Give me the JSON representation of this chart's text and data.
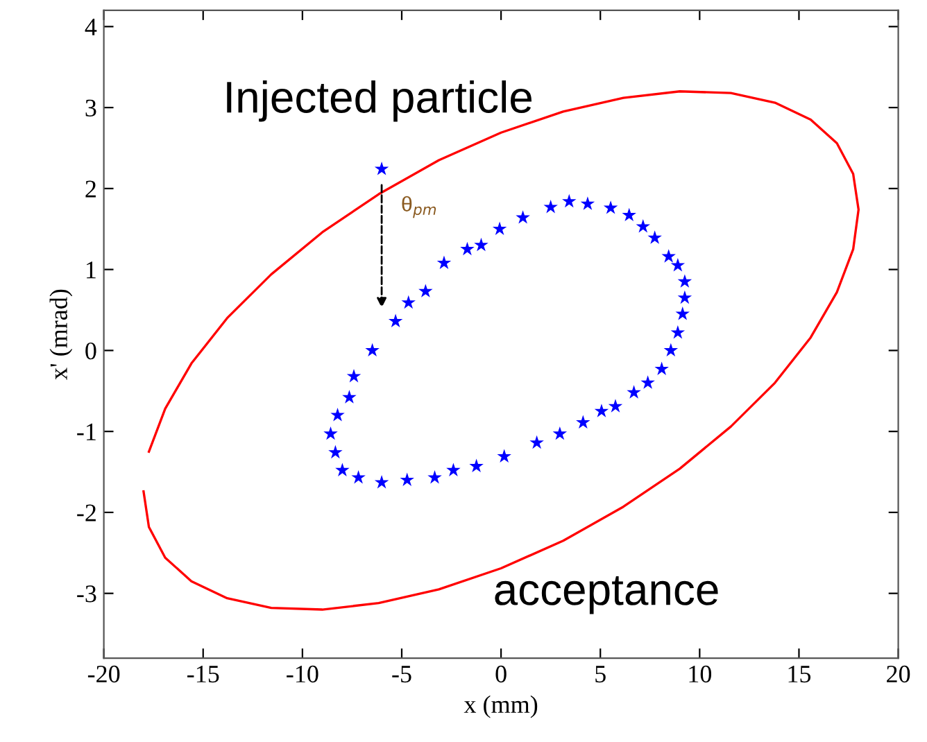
{
  "chart_data": {
    "type": "scatter",
    "xlabel": "x (mm)",
    "ylabel": "x' (mrad)",
    "xlim": [
      -20,
      20
    ],
    "xticks": [
      -20,
      -15,
      -10,
      -5,
      0,
      5,
      10,
      15,
      20
    ],
    "ylim": [
      -3.8,
      4.2
    ],
    "yticks": [
      -3,
      -2,
      -1,
      0,
      1,
      2,
      3,
      4
    ],
    "grid": false,
    "legend": false,
    "annotations": [
      "θ$_{pm}$"
    ],
    "series": [
      {
        "name": "Injected particle",
        "marker": "star",
        "color": "#0000ff",
        "x": [
          -6.01,
          -5.31,
          -4.66,
          -3.8,
          -2.87,
          -1.7,
          -1.0,
          -0.07,
          1.1,
          2.5,
          3.43,
          4.36,
          5.52,
          6.45,
          7.15,
          7.74,
          8.44,
          8.9,
          9.25,
          9.25,
          9.14,
          8.9,
          8.55,
          8.09,
          7.39,
          6.69,
          5.76,
          5.06,
          4.13,
          2.96,
          1.8,
          0.16,
          -1.24,
          -2.4,
          -3.34,
          -4.73,
          -6.01,
          -7.18,
          -7.99,
          -8.34,
          -8.58,
          -8.23,
          -7.64,
          -7.41,
          -6.48
        ],
        "values": [
          2.24,
          0.36,
          0.59,
          0.73,
          1.08,
          1.25,
          1.3,
          1.5,
          1.64,
          1.77,
          1.84,
          1.81,
          1.76,
          1.67,
          1.53,
          1.39,
          1.16,
          1.05,
          0.85,
          0.65,
          0.45,
          0.22,
          0.0,
          -0.23,
          -0.4,
          -0.52,
          -0.69,
          -0.75,
          -0.89,
          -1.03,
          -1.14,
          -1.31,
          -1.43,
          -1.48,
          -1.57,
          -1.6,
          -1.63,
          -1.57,
          -1.48,
          -1.26,
          -1.03,
          -0.8,
          -0.58,
          -0.32,
          0.0
        ]
      },
      {
        "name": "acceptance",
        "type": "line",
        "marker": "none",
        "line_style": "solid",
        "color": "#ff0000",
        "x": [
          -18.0,
          -17.73,
          -16.91,
          -15.59,
          -13.79,
          -11.57,
          -9.0,
          -6.16,
          -3.13,
          0,
          3.13,
          6.16,
          9.0,
          11.57,
          13.79,
          15.59,
          16.91,
          17.73,
          18.0,
          17.73,
          16.91,
          15.59,
          13.79,
          11.57,
          9.0,
          6.16,
          3.13,
          0,
          -3.13,
          -6.16,
          -9.0,
          -11.57,
          -13.79,
          -15.59,
          -16.91,
          -17.73
        ],
        "values": [
          -1.74,
          -2.18,
          -2.56,
          -2.85,
          -3.06,
          -3.18,
          -3.2,
          -3.12,
          -2.95,
          -2.69,
          -2.35,
          -1.93,
          -1.46,
          -0.94,
          -0.4,
          0.16,
          0.72,
          1.25,
          1.74,
          2.18,
          2.56,
          2.85,
          3.06,
          3.18,
          3.2,
          3.12,
          2.95,
          2.69,
          2.35,
          1.93,
          1.46,
          0.94,
          0.4,
          -0.16,
          -0.72,
          -1.25
        ]
      }
    ]
  }
}
